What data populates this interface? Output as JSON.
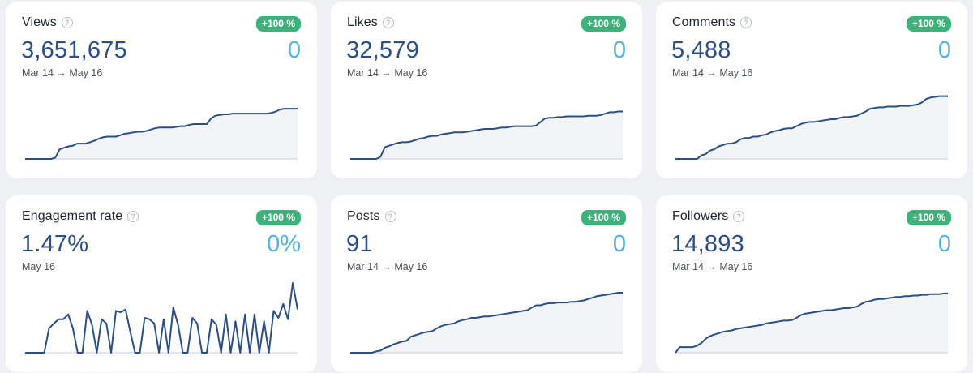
{
  "cards": [
    {
      "title": "Views",
      "value": "3,651,675",
      "change": "0",
      "badge": "+100 %",
      "range": "Mar 14 → May 16",
      "chart_data": {
        "type": "area",
        "title": "Views",
        "ylim": [
          0,
          100
        ],
        "values": [
          0,
          0,
          0,
          0,
          0,
          0,
          0,
          2,
          14,
          16,
          18,
          19,
          22,
          22,
          22,
          24,
          26,
          29,
          31,
          32,
          32,
          32,
          34,
          36,
          37,
          38,
          39,
          39,
          40,
          42,
          44,
          45,
          45,
          45,
          45,
          46,
          47,
          47,
          49,
          50,
          50,
          50,
          50,
          58,
          62,
          63,
          64,
          64,
          65,
          65,
          65,
          65,
          65,
          65,
          65,
          65,
          65,
          66,
          68,
          71,
          72,
          72,
          72,
          72
        ]
      }
    },
    {
      "title": "Likes",
      "value": "32,579",
      "change": "0",
      "badge": "+100 %",
      "range": "Mar 14 → May 16",
      "chart_data": {
        "type": "area",
        "title": "Likes",
        "ylim": [
          0,
          100
        ],
        "values": [
          0,
          0,
          0,
          0,
          0,
          0,
          0,
          3,
          17,
          19,
          21,
          23,
          24,
          24,
          25,
          27,
          29,
          30,
          32,
          33,
          33,
          35,
          36,
          37,
          38,
          38,
          38,
          39,
          40,
          41,
          42,
          43,
          43,
          43,
          44,
          45,
          45,
          46,
          47,
          47,
          47,
          47,
          47,
          48,
          53,
          58,
          59,
          59,
          60,
          60,
          61,
          61,
          61,
          61,
          61,
          62,
          62,
          62,
          63,
          65,
          67,
          67,
          68,
          68
        ]
      }
    },
    {
      "title": "Comments",
      "value": "5,488",
      "change": "0",
      "badge": "+100 %",
      "range": "Mar 14 → May 16",
      "chart_data": {
        "type": "area",
        "title": "Comments",
        "ylim": [
          0,
          100
        ],
        "values": [
          0,
          0,
          0,
          0,
          0,
          0,
          5,
          7,
          12,
          14,
          18,
          20,
          22,
          22,
          24,
          28,
          30,
          30,
          32,
          32,
          34,
          35,
          38,
          40,
          41,
          43,
          44,
          44,
          47,
          50,
          52,
          53,
          53,
          54,
          55,
          56,
          57,
          57,
          59,
          60,
          60,
          61,
          62,
          65,
          68,
          72,
          73,
          74,
          74,
          75,
          75,
          75,
          76,
          76,
          76,
          77,
          78,
          81,
          86,
          88,
          89,
          90,
          90,
          90
        ]
      }
    },
    {
      "title": "Engagement rate",
      "value": "1.47%",
      "change": "0%",
      "badge": "+100 %",
      "range": "May 16",
      "chart_data": {
        "type": "line",
        "title": "Engagement rate",
        "ylim": [
          0,
          100
        ],
        "values": [
          0,
          0,
          0,
          0,
          0,
          35,
          42,
          48,
          48,
          55,
          35,
          0,
          0,
          60,
          40,
          0,
          48,
          42,
          0,
          60,
          58,
          62,
          30,
          0,
          0,
          50,
          48,
          42,
          0,
          48,
          0,
          65,
          40,
          0,
          0,
          50,
          42,
          0,
          0,
          48,
          40,
          0,
          55,
          0,
          45,
          0,
          55,
          0,
          55,
          0,
          45,
          0,
          60,
          50,
          70,
          48,
          100,
          62
        ]
      }
    },
    {
      "title": "Posts",
      "value": "91",
      "change": "0",
      "badge": "+100 %",
      "range": "Mar 14 → May 16",
      "chart_data": {
        "type": "area",
        "title": "Posts",
        "ylim": [
          0,
          100
        ],
        "values": [
          0,
          0,
          0,
          0,
          0,
          0,
          2,
          3,
          7,
          9,
          12,
          14,
          16,
          17,
          23,
          25,
          27,
          29,
          30,
          31,
          35,
          38,
          40,
          41,
          42,
          45,
          47,
          48,
          50,
          50,
          51,
          52,
          52,
          53,
          54,
          55,
          56,
          57,
          58,
          59,
          60,
          61,
          65,
          68,
          68,
          70,
          71,
          71,
          72,
          72,
          72,
          73,
          73,
          74,
          75,
          77,
          79,
          81,
          82,
          83,
          84,
          85,
          86,
          86
        ]
      }
    },
    {
      "title": "Followers",
      "value": "14,893",
      "change": "0",
      "badge": "+100 %",
      "range": "Mar 14 → May 16",
      "chart_data": {
        "type": "area",
        "title": "Followers",
        "ylim": [
          0,
          100
        ],
        "values": [
          0,
          8,
          8,
          8,
          8,
          10,
          14,
          20,
          24,
          26,
          28,
          30,
          31,
          32,
          34,
          35,
          36,
          37,
          38,
          39,
          40,
          42,
          43,
          44,
          45,
          46,
          46,
          47,
          50,
          54,
          56,
          57,
          58,
          59,
          60,
          61,
          61,
          62,
          63,
          64,
          64,
          65,
          66,
          70,
          73,
          74,
          76,
          77,
          77,
          78,
          79,
          80,
          80,
          81,
          81,
          82,
          82,
          83,
          83,
          84,
          84,
          84,
          85,
          85
        ]
      }
    }
  ],
  "colors": {
    "line": "#2b4f85",
    "fill": "#f3f4f8",
    "baseline": "#c8ccd4",
    "badge": "#3bb37a",
    "value": "#2b4f85",
    "change": "#54b1e1"
  },
  "icons": {
    "help": "help-circle-icon"
  }
}
